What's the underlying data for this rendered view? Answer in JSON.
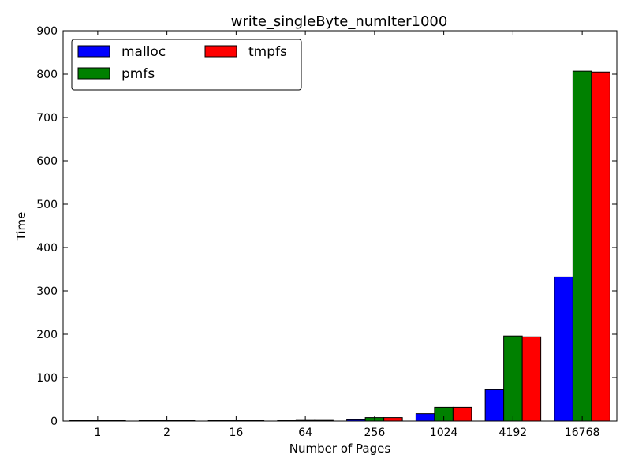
{
  "chart_data": {
    "type": "bar",
    "title": "write_singleByte_numIter1000",
    "xlabel": "Number of Pages",
    "ylabel": "Time",
    "ylim": [
      0,
      900
    ],
    "yticks": [
      0,
      100,
      200,
      300,
      400,
      500,
      600,
      700,
      800,
      900
    ],
    "categories": [
      "1",
      "2",
      "16",
      "64",
      "256",
      "1024",
      "4192",
      "16768"
    ],
    "series": [
      {
        "name": "malloc",
        "color": "#0000ff",
        "values": [
          0.05,
          0.05,
          0.1,
          0.5,
          3,
          17,
          72,
          332
        ]
      },
      {
        "name": "pmfs",
        "color": "#008000",
        "values": [
          0.1,
          0.1,
          0.3,
          1.5,
          8,
          32,
          196,
          807
        ]
      },
      {
        "name": "tmpfs",
        "color": "#ff0000",
        "values": [
          0.1,
          0.1,
          0.3,
          1.5,
          8,
          32,
          194,
          805
        ]
      }
    ],
    "legend_position": "top-left",
    "legend_columns": 2,
    "grid": false
  }
}
